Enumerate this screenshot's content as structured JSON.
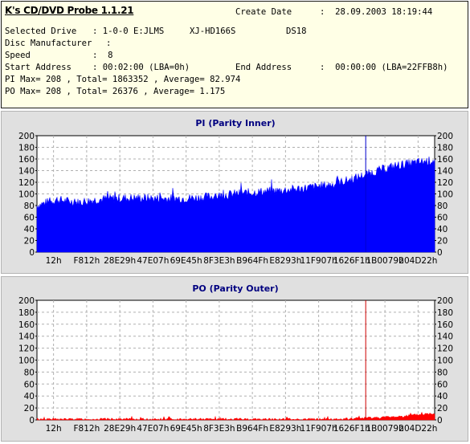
{
  "header": {
    "app_title": "K's CD/DVD Probe 1.1.21",
    "create_date_label": "Create Date",
    "create_date_value": ":  28.09.2003 18:19:44",
    "selected_drive_label": "Selected Drive",
    "selected_drive_value": ": 1-0-0 E:JLMS",
    "drive_model": "XJ-HD166S",
    "drive_firmware": "DS18",
    "disc_manufacturer_label": "Disc Manufacturer",
    "disc_manufacturer_value": ":",
    "speed_label": "Speed",
    "speed_value": ":  8",
    "start_address_label": "Start Address",
    "start_address_value": ": 00:02:00 (LBA=0h)",
    "end_address_label": "End Address",
    "end_address_value": ":  00:00:00 (LBA=22FFB8h)",
    "pi_summary": "PI Max= 208 , Total= 1863352 , Average= 82.974",
    "po_summary": "PO Max= 208 , Total= 26376 , Average= 1.175"
  },
  "colors": {
    "header_bg": "#ffffe6",
    "panel_bg": "#e0e0e0",
    "title_color": "#000080",
    "pi_fill": "#0000ff",
    "po_fill": "#ff0000",
    "pi_marker": "#0000cc",
    "po_marker": "#cc0000"
  },
  "chart_data": [
    {
      "type": "area",
      "title": "PI (Parity Inner)",
      "xlabel": "",
      "ylabel": "",
      "ylim": [
        0,
        200
      ],
      "yticks": [
        0,
        20,
        40,
        60,
        80,
        100,
        120,
        140,
        160,
        180,
        200
      ],
      "xtick_labels": [
        "12h",
        "F812h",
        "28E29h",
        "47E07h",
        "69E45h",
        "8F3E3h",
        "B964Fh",
        "E8293h",
        "11F907h",
        "1626F1h",
        "1B0079h",
        "204D22h"
      ],
      "grid": true,
      "marker_position_label": "1626F1h",
      "series_profile": [
        {
          "x_frac": 0.0,
          "y": 80
        },
        {
          "x_frac": 0.05,
          "y": 90
        },
        {
          "x_frac": 0.1,
          "y": 85
        },
        {
          "x_frac": 0.15,
          "y": 90
        },
        {
          "x_frac": 0.2,
          "y": 92
        },
        {
          "x_frac": 0.25,
          "y": 93
        },
        {
          "x_frac": 0.3,
          "y": 92
        },
        {
          "x_frac": 0.35,
          "y": 92
        },
        {
          "x_frac": 0.4,
          "y": 93
        },
        {
          "x_frac": 0.45,
          "y": 96
        },
        {
          "x_frac": 0.5,
          "y": 100
        },
        {
          "x_frac": 0.55,
          "y": 103
        },
        {
          "x_frac": 0.6,
          "y": 105
        },
        {
          "x_frac": 0.65,
          "y": 108
        },
        {
          "x_frac": 0.7,
          "y": 112
        },
        {
          "x_frac": 0.75,
          "y": 117
        },
        {
          "x_frac": 0.8,
          "y": 127
        },
        {
          "x_frac": 0.85,
          "y": 138
        },
        {
          "x_frac": 0.9,
          "y": 148
        },
        {
          "x_frac": 0.95,
          "y": 153
        },
        {
          "x_frac": 1.0,
          "y": 158
        }
      ],
      "noise_amplitude": 8
    },
    {
      "type": "area",
      "title": "PO (Parity Outer)",
      "xlabel": "",
      "ylabel": "",
      "ylim": [
        0,
        200
      ],
      "yticks": [
        0,
        20,
        40,
        60,
        80,
        100,
        120,
        140,
        160,
        180,
        200
      ],
      "xtick_labels": [
        "12h",
        "F812h",
        "28E29h",
        "47E07h",
        "69E45h",
        "8F3E3h",
        "B964Fh",
        "E8293h",
        "11F907h",
        "1626F1h",
        "1B0079h",
        "204D22h"
      ],
      "grid": true,
      "marker_position_label": "1626F1h",
      "series_profile": [
        {
          "x_frac": 0.0,
          "y": 1
        },
        {
          "x_frac": 0.2,
          "y": 1
        },
        {
          "x_frac": 0.4,
          "y": 1
        },
        {
          "x_frac": 0.6,
          "y": 1
        },
        {
          "x_frac": 0.77,
          "y": 1
        },
        {
          "x_frac": 0.82,
          "y": 3
        },
        {
          "x_frac": 0.9,
          "y": 5
        },
        {
          "x_frac": 0.95,
          "y": 8
        },
        {
          "x_frac": 1.0,
          "y": 11
        }
      ],
      "noise_amplitude": 2
    }
  ]
}
